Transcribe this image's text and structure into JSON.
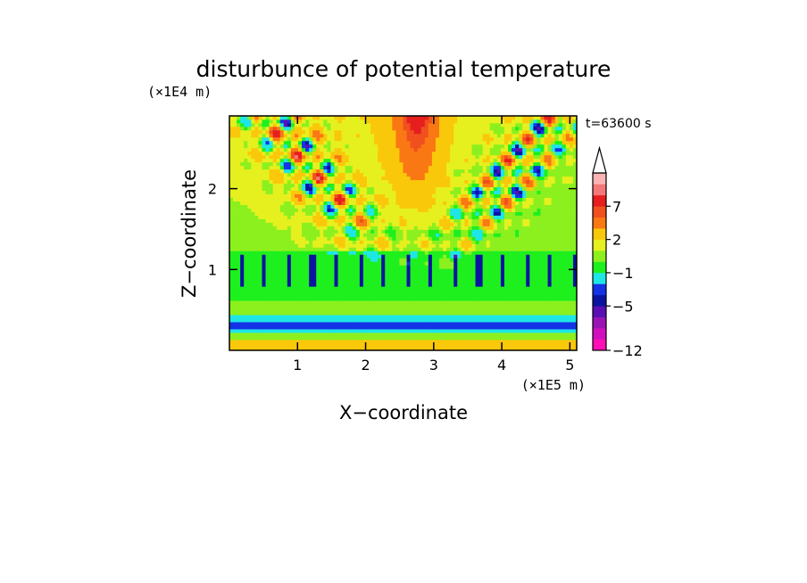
{
  "chart_data": {
    "type": "heatmap",
    "title": "disturbunce of potential temperature",
    "xlabel": "X−coordinate",
    "ylabel": "Z−coordinate",
    "x_unit": "(×1E5 m)",
    "y_unit": "(×1E4 m)",
    "time_label": "t=63600 s",
    "xlim": [
      0,
      5.1
    ],
    "ylim": [
      0,
      2.9
    ],
    "x_ticks": [
      1,
      2,
      3,
      4,
      5
    ],
    "y_ticks": [
      1,
      2
    ],
    "x_tick_labels": [
      "1",
      "2",
      "3",
      "4",
      "5"
    ],
    "y_tick_labels": [
      "1",
      "2"
    ],
    "colorbar": {
      "levels": [
        -12,
        -11,
        -9,
        -7,
        -5,
        -4,
        -3,
        -1,
        0,
        1,
        2,
        4,
        6,
        7,
        9,
        10,
        11
      ],
      "labeled_levels": [
        -12,
        -5,
        -1,
        2,
        7
      ],
      "labels": [
        "−12",
        "−5",
        "−1",
        "2",
        "7"
      ],
      "colors": [
        "#ff0fb4",
        "#d20fbe",
        "#9a14b4",
        "#5a0fb4",
        "#0a14a0",
        "#1432e6",
        "#1ee6e6",
        "#1ef01e",
        "#8cf01e",
        "#e6f01e",
        "#fac80a",
        "#fa7814",
        "#f0501e",
        "#e61e1e",
        "#f57878",
        "#fab4b4"
      ],
      "extend": "max"
    }
  }
}
